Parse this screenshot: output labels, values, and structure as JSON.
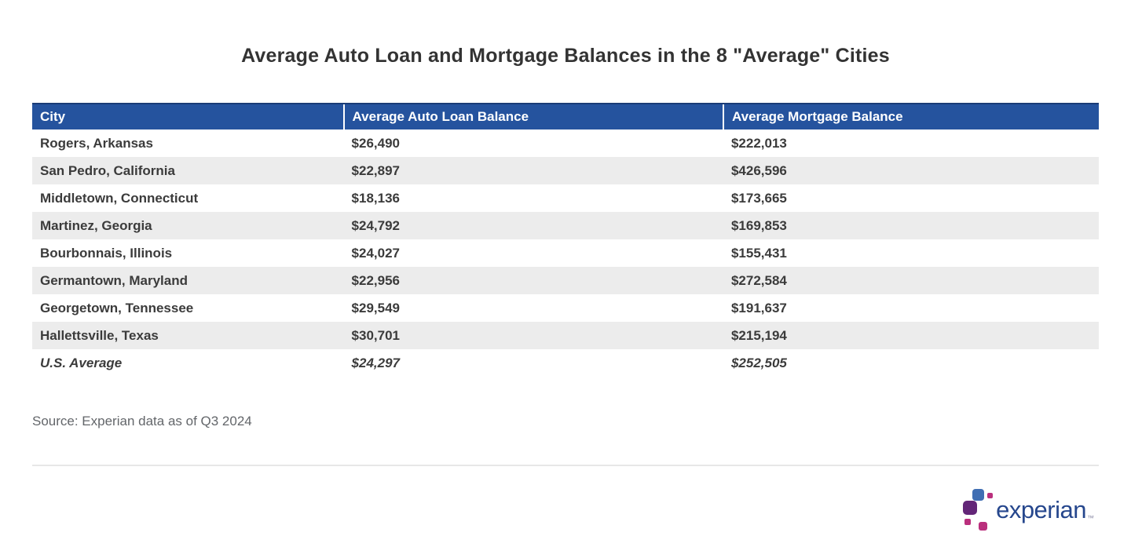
{
  "page": {
    "title": "Average Auto Loan and Mortgage Balances in the 8 \"Average\" Cities",
    "source_note": "Source: Experian data as of Q3 2024"
  },
  "table": {
    "columns": [
      "City",
      "Average Auto Loan Balance",
      "Average Mortgage Balance"
    ],
    "rows": [
      {
        "city": "Rogers, Arkansas",
        "auto_loan": "$26,490",
        "mortgage": "$222,013",
        "emphasis": false
      },
      {
        "city": "San Pedro, California",
        "auto_loan": "$22,897",
        "mortgage": "$426,596",
        "emphasis": false
      },
      {
        "city": "Middletown, Connecticut",
        "auto_loan": "$18,136",
        "mortgage": "$173,665",
        "emphasis": false
      },
      {
        "city": "Martinez, Georgia",
        "auto_loan": "$24,792",
        "mortgage": "$169,853",
        "emphasis": false
      },
      {
        "city": "Bourbonnais, Illinois",
        "auto_loan": "$24,027",
        "mortgage": "$155,431",
        "emphasis": false
      },
      {
        "city": "Germantown, Maryland",
        "auto_loan": "$22,956",
        "mortgage": "$272,584",
        "emphasis": false
      },
      {
        "city": "Georgetown, Tennessee",
        "auto_loan": "$29,549",
        "mortgage": "$191,637",
        "emphasis": false
      },
      {
        "city": "Hallettsville, Texas",
        "auto_loan": "$30,701",
        "mortgage": "$215,194",
        "emphasis": false
      },
      {
        "city": "U.S. Average",
        "auto_loan": "$24,297",
        "mortgage": "$252,505",
        "emphasis": true
      }
    ]
  },
  "chart_data": {
    "type": "table",
    "title": "Average Auto Loan and Mortgage Balances in the 8 \"Average\" Cities",
    "columns": [
      "City",
      "Average Auto Loan Balance",
      "Average Mortgage Balance"
    ],
    "categories": [
      "Rogers, Arkansas",
      "San Pedro, California",
      "Middletown, Connecticut",
      "Martinez, Georgia",
      "Bourbonnais, Illinois",
      "Germantown, Maryland",
      "Georgetown, Tennessee",
      "Hallettsville, Texas",
      "U.S. Average"
    ],
    "series": [
      {
        "name": "Average Auto Loan Balance",
        "values": [
          26490,
          22897,
          18136,
          24792,
          24027,
          22956,
          29549,
          30701,
          24297
        ]
      },
      {
        "name": "Average Mortgage Balance",
        "values": [
          222013,
          426596,
          173665,
          169853,
          155431,
          272584,
          191637,
          215194,
          252505
        ]
      }
    ],
    "source": "Source: Experian data as of Q3 2024"
  },
  "logo": {
    "text": "experian",
    "trademark": "™"
  },
  "colors": {
    "header_bg": "#25539E",
    "header_top_border": "#1A3C77",
    "header_text": "#FFFFFF",
    "row_alt_bg": "#ECECEC",
    "body_text": "#3B3B3B",
    "title_text": "#333333",
    "source_text": "#63666A",
    "divider": "#E7E7E7",
    "logo_text": "#26478D",
    "logo_blue_square": "#406EB3",
    "logo_purple_square": "#632678",
    "logo_magenta_square": "#BA2F7D"
  }
}
